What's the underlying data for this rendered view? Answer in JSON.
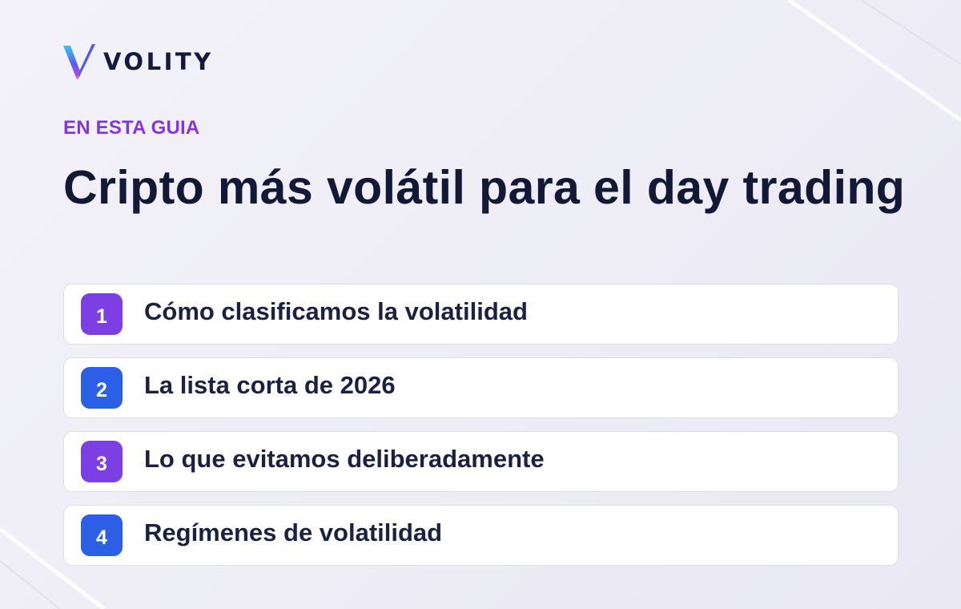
{
  "brand": {
    "name": "VOLITY",
    "logo_icon": "volity-logo-icon"
  },
  "eyebrow": "EN ESTA GUIA",
  "title": "Cripto más volátil para el day trading",
  "items": [
    {
      "number": "1",
      "label": "Cómo clasificamos la volatilidad",
      "badge_color": "#7b3fe4"
    },
    {
      "number": "2",
      "label": "La lista corta de 2026",
      "badge_color": "#2b5fe6"
    },
    {
      "number": "3",
      "label": "Lo que evitamos deliberadamente",
      "badge_color": "#7b3fe4"
    },
    {
      "number": "4",
      "label": "Regímenes de volatilidad",
      "badge_color": "#2b5fe6"
    }
  ],
  "colors": {
    "accent_purple": "#8436d9",
    "accent_blue": "#2b5fe6",
    "heading": "#121936"
  }
}
